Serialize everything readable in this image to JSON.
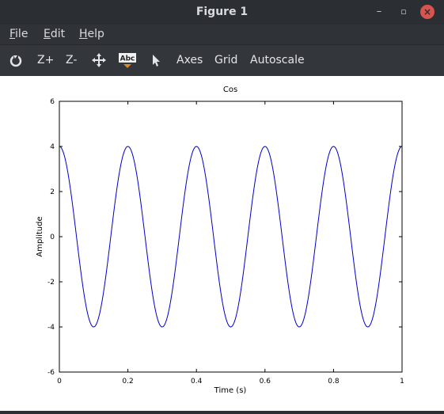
{
  "window": {
    "title": "Figure 1",
    "minimize": "–",
    "maximize": "▫",
    "close": "×"
  },
  "menubar": {
    "items": [
      "File",
      "Edit",
      "Help"
    ]
  },
  "toolbar": {
    "zoom_in": "Z+",
    "zoom_out": "Z-",
    "axes": "Axes",
    "grid": "Grid",
    "autoscale": "Autoscale",
    "text_tool_icon": "Abc"
  },
  "chart_data": {
    "type": "line",
    "title": "Cos",
    "xlabel": "Time (s)",
    "ylabel": "Amplitude",
    "xlim": [
      0,
      1
    ],
    "ylim": [
      -6,
      6
    ],
    "xticks": [
      "0",
      "0.2",
      "0.4",
      "0.6",
      "0.8",
      "1"
    ],
    "yticks": [
      "6",
      "4",
      "2",
      "0",
      "-2",
      "-4",
      "-6"
    ],
    "series": [
      {
        "function": "4*cos(2*pi*5*t)",
        "amplitude": 4,
        "frequency_hz": 5,
        "color": "#0000cc"
      }
    ],
    "grid": false
  }
}
